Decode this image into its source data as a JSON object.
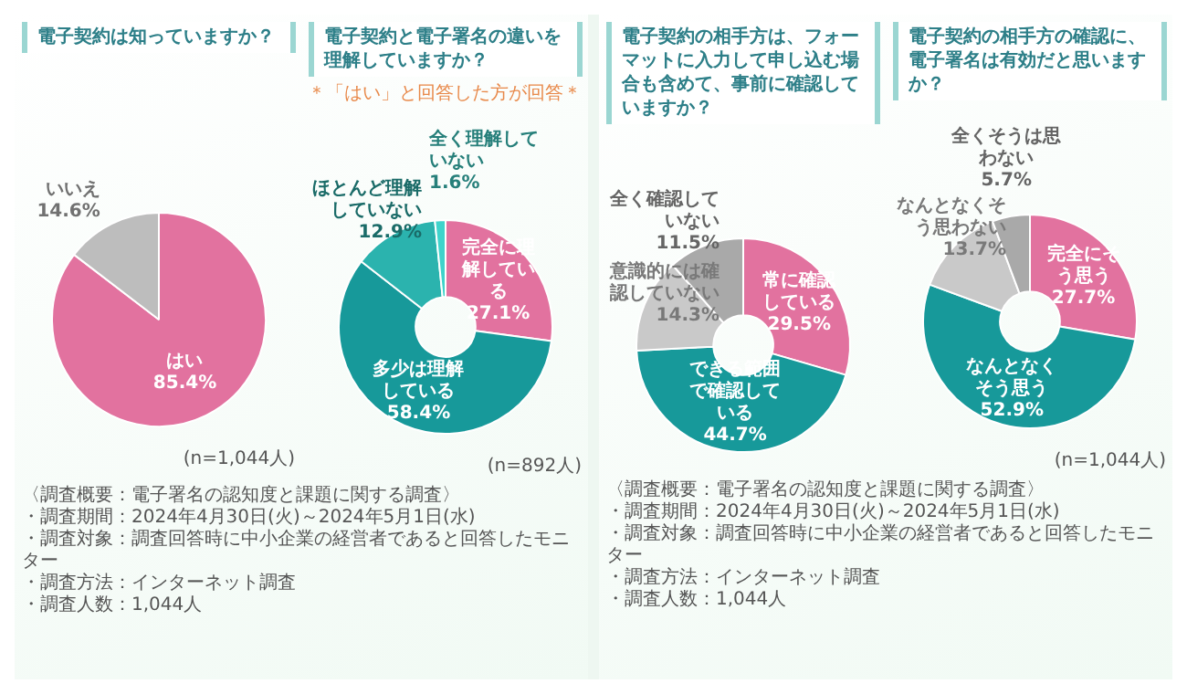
{
  "chart_data": [
    {
      "type": "pie",
      "title": "電子契約は知っていますか？",
      "categories": [
        "はい",
        "いいえ"
      ],
      "values": [
        85.4,
        14.6
      ],
      "colors": [
        "#e2729f",
        "#bdbdbd"
      ],
      "value_labels": [
        "85.4%",
        "14.6%"
      ],
      "annotations": [
        "(n=1,044人)"
      ]
    },
    {
      "type": "donut",
      "title": "電子契約と電子署名の違いを理解していますか？",
      "subtitle": "＊「はい」と回答した方が回答＊",
      "categories": [
        "完全に理解している",
        "多少は理解している",
        "ほとんど理解していない",
        "全く理解していない"
      ],
      "values": [
        27.1,
        58.4,
        12.9,
        1.6
      ],
      "colors": [
        "#e2729f",
        "#17999a",
        "#2bb3ae",
        "#3fd3cb"
      ],
      "value_labels": [
        "27.1%",
        "58.4%",
        "12.9%",
        "1.6%"
      ],
      "annotations": [
        "(n=892人)",
        "〈調査概要：電子署名の認知度と課題に関する調査〉",
        "・調査期間：2024年4月30日(火)～2024年5月1日(水)",
        "・調査対象：調査回答時に中小企業の経営者であると回答したモニター",
        "・調査方法：インターネット調査",
        "・調査人数：1,044人"
      ]
    },
    {
      "type": "donut",
      "title": "電子契約の相手方は、フォーマットに入力して申し込む場合も含めて、事前に確認していますか？",
      "categories": [
        "常に確認している",
        "できる範囲で確認している",
        "意識的には確認していない",
        "全く確認していない"
      ],
      "values": [
        29.5,
        44.7,
        14.3,
        11.5
      ],
      "colors": [
        "#e2729f",
        "#17999a",
        "#c9c9c9",
        "#a9a9a9"
      ],
      "value_labels": [
        "29.5%",
        "44.7%",
        "14.3%",
        "11.5%"
      ]
    },
    {
      "type": "donut",
      "title": "電子契約の相手方の確認に、電子署名は有効だと思いますか？",
      "categories": [
        "完全にそう思う",
        "なんとなくそう思う",
        "なんとなくそう思わない",
        "全くそうは思わない"
      ],
      "values": [
        27.7,
        52.9,
        13.7,
        5.7
      ],
      "colors": [
        "#e2729f",
        "#17999a",
        "#c9c9c9",
        "#a9a9a9"
      ],
      "value_labels": [
        "27.7%",
        "52.9%",
        "13.7%",
        "5.7%"
      ],
      "annotations": [
        "(n=1,044人)",
        "〈調査概要：電子署名の認知度と課題に関する調査〉",
        "・調査期間：2024年4月30日(火)～2024年5月1日(水)",
        "・調査対象：調査回答時に中小企業の経営者であると回答したモニター",
        "・調査方法：インターネット調査",
        "・調査人数：1,044人"
      ]
    }
  ]
}
